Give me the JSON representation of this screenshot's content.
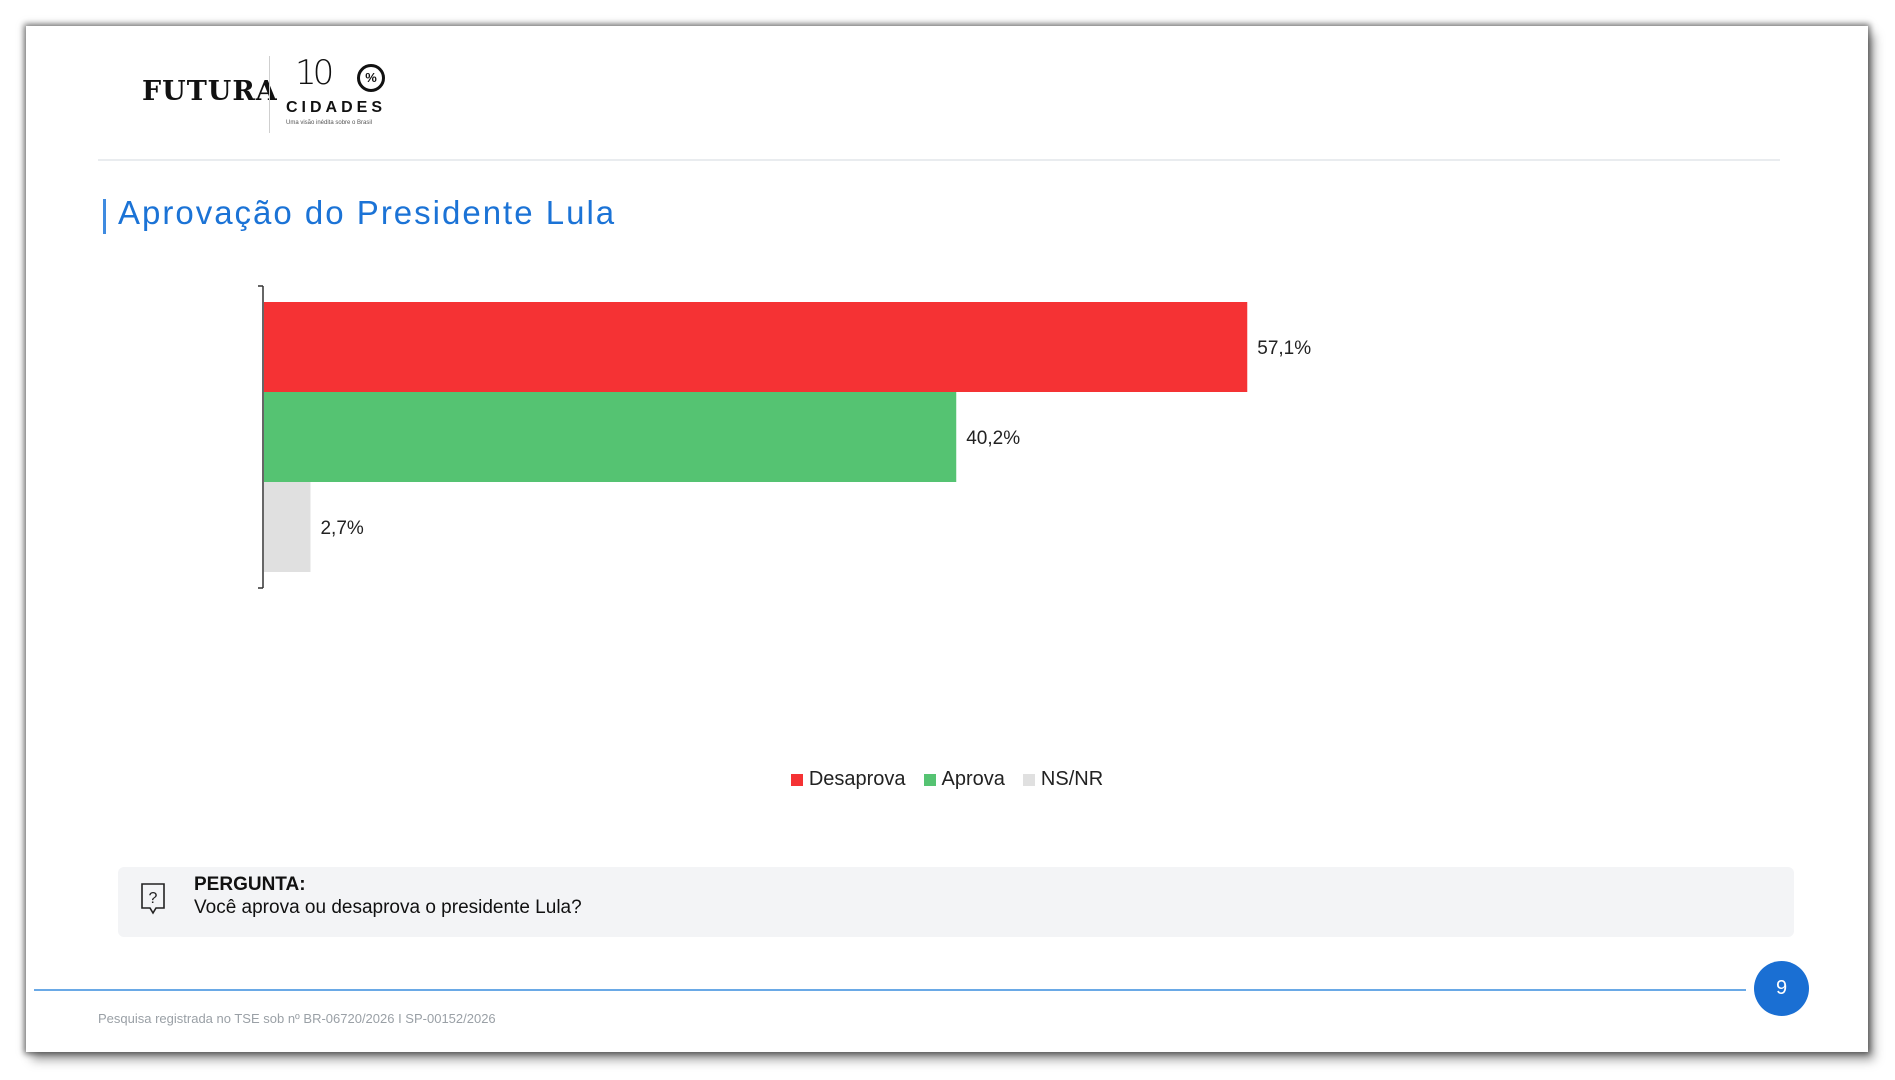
{
  "logo": {
    "brand": "FUTURA",
    "hundred": "10",
    "percent": "%",
    "cidades": "CIDADES",
    "tagline": "Uma visão inédita sobre o Brasil"
  },
  "title": "Aprovação do Presidente Lula",
  "chart_data": {
    "type": "bar",
    "orientation": "horizontal",
    "series": [
      {
        "name": "Desaprova",
        "value": 57.1,
        "label": "57,1%",
        "color": "#f53234"
      },
      {
        "name": "Aprova",
        "value": 40.2,
        "label": "40,2%",
        "color": "#55c372"
      },
      {
        "name": "NS/NR",
        "value": 2.7,
        "label": "2,7%",
        "color": "#e0e0e0"
      }
    ],
    "xlim": [
      0,
      100
    ],
    "legend": "bottom-center",
    "grid": false
  },
  "question": {
    "label": "PERGUNTA:",
    "text": "Você aprova ou desaprova o presidente Lula?",
    "icon": "question-bubble-icon"
  },
  "page_number": "9",
  "footer": "Pesquisa registrada no TSE sob nº BR-06720/2026 I SP-00152/2026"
}
